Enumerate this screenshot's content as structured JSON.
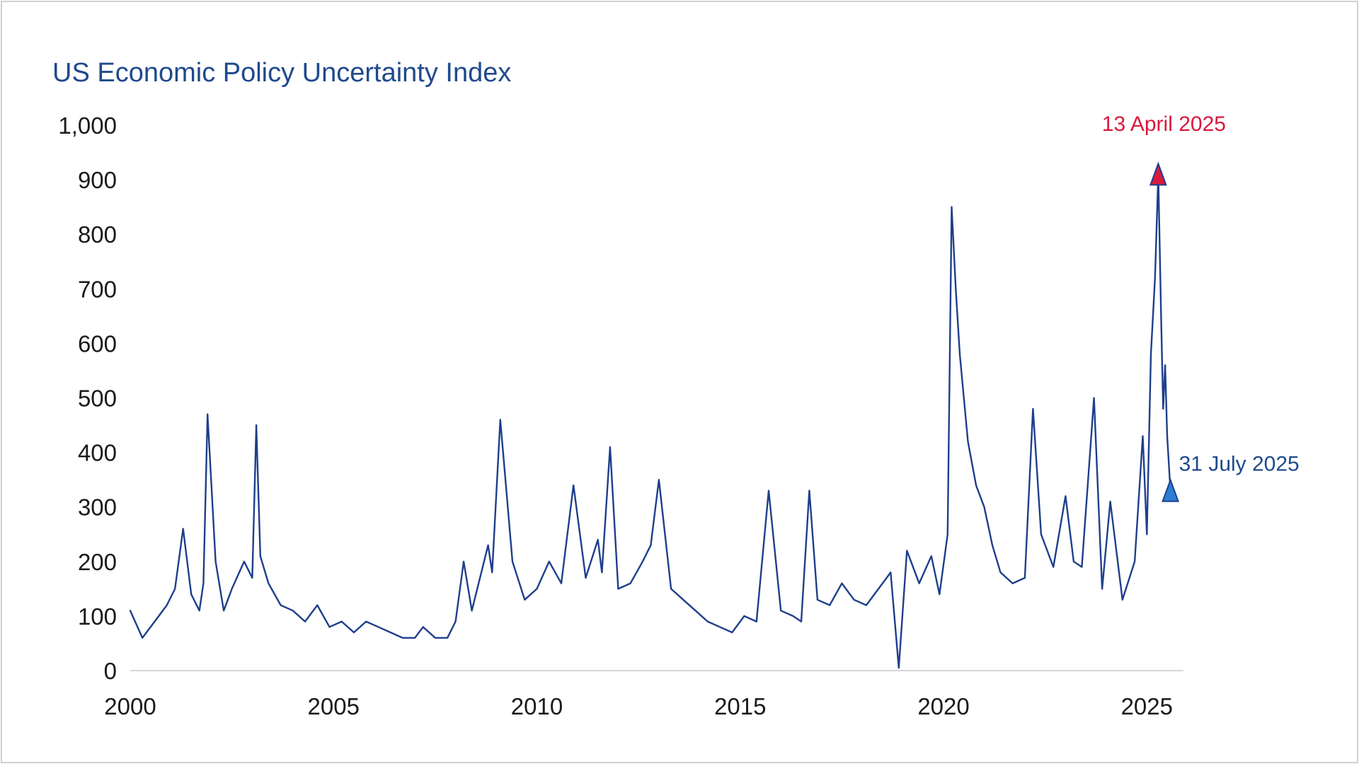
{
  "chart_data": {
    "type": "line",
    "title": "US Economic Policy Uncertainty Index",
    "xlabel": "",
    "ylabel": "",
    "ylim": [
      0,
      1000
    ],
    "xlim": [
      2000,
      2025.9
    ],
    "grid": false,
    "legend": "none",
    "x_ticks": [
      2000,
      2005,
      2010,
      2015,
      2020,
      2025
    ],
    "x_tick_labels": [
      "2000",
      "2005",
      "2010",
      "2015",
      "2020",
      "2025"
    ],
    "y_ticks": [
      0,
      100,
      200,
      300,
      400,
      500,
      600,
      700,
      800,
      900,
      1000
    ],
    "y_tick_labels": [
      "0",
      "100",
      "200",
      "300",
      "400",
      "500",
      "600",
      "700",
      "800",
      "900",
      "1,000"
    ],
    "series": [
      {
        "color": "#1f3f8c",
        "x": [
          2000.0,
          2000.3,
          2000.6,
          2000.9,
          2001.1,
          2001.3,
          2001.5,
          2001.7,
          2001.8,
          2001.9,
          2002.1,
          2002.3,
          2002.5,
          2002.8,
          2003.0,
          2003.1,
          2003.2,
          2003.4,
          2003.7,
          2004.0,
          2004.3,
          2004.6,
          2004.9,
          2005.2,
          2005.5,
          2005.8,
          2006.1,
          2006.4,
          2006.7,
          2007.0,
          2007.2,
          2007.5,
          2007.8,
          2008.0,
          2008.2,
          2008.4,
          2008.6,
          2008.8,
          2008.9,
          2009.1,
          2009.4,
          2009.7,
          2010.0,
          2010.3,
          2010.6,
          2010.9,
          2011.2,
          2011.5,
          2011.6,
          2011.8,
          2012.0,
          2012.3,
          2012.6,
          2012.8,
          2013.0,
          2013.3,
          2013.6,
          2013.9,
          2014.2,
          2014.5,
          2014.8,
          2015.1,
          2015.4,
          2015.7,
          2016.0,
          2016.3,
          2016.5,
          2016.7,
          2016.9,
          2017.2,
          2017.5,
          2017.8,
          2018.1,
          2018.4,
          2018.7,
          2018.9,
          2019.1,
          2019.4,
          2019.7,
          2019.9,
          2020.1,
          2020.2,
          2020.3,
          2020.4,
          2020.6,
          2020.8,
          2021.0,
          2021.2,
          2021.4,
          2021.7,
          2022.0,
          2022.2,
          2022.4,
          2022.7,
          2023.0,
          2023.2,
          2023.4,
          2023.7,
          2023.9,
          2024.1,
          2024.4,
          2024.7,
          2024.9,
          2025.0,
          2025.1,
          2025.2,
          2025.28,
          2025.35,
          2025.4,
          2025.45,
          2025.5,
          2025.58
        ],
        "values": [
          110,
          60,
          90,
          120,
          150,
          260,
          140,
          110,
          160,
          470,
          200,
          110,
          150,
          200,
          170,
          450,
          210,
          160,
          120,
          110,
          90,
          120,
          80,
          90,
          70,
          90,
          80,
          70,
          60,
          60,
          80,
          60,
          60,
          90,
          200,
          110,
          170,
          230,
          180,
          460,
          200,
          130,
          150,
          200,
          160,
          340,
          170,
          240,
          180,
          410,
          150,
          160,
          200,
          230,
          350,
          150,
          130,
          110,
          90,
          80,
          70,
          100,
          90,
          330,
          110,
          100,
          90,
          330,
          130,
          120,
          160,
          130,
          120,
          150,
          180,
          5,
          220,
          160,
          210,
          140,
          250,
          850,
          700,
          580,
          420,
          340,
          300,
          230,
          180,
          160,
          170,
          480,
          250,
          190,
          320,
          200,
          190,
          500,
          150,
          310,
          130,
          200,
          430,
          250,
          580,
          720,
          910,
          650,
          480,
          560,
          430,
          330
        ]
      }
    ],
    "annotations": [
      {
        "label": "13 April 2025",
        "x": 2025.28,
        "y": 910,
        "color": "#d91a3d"
      },
      {
        "label": "31 July 2025",
        "x": 2025.58,
        "y": 330,
        "color": "#2a7fd4"
      }
    ]
  }
}
